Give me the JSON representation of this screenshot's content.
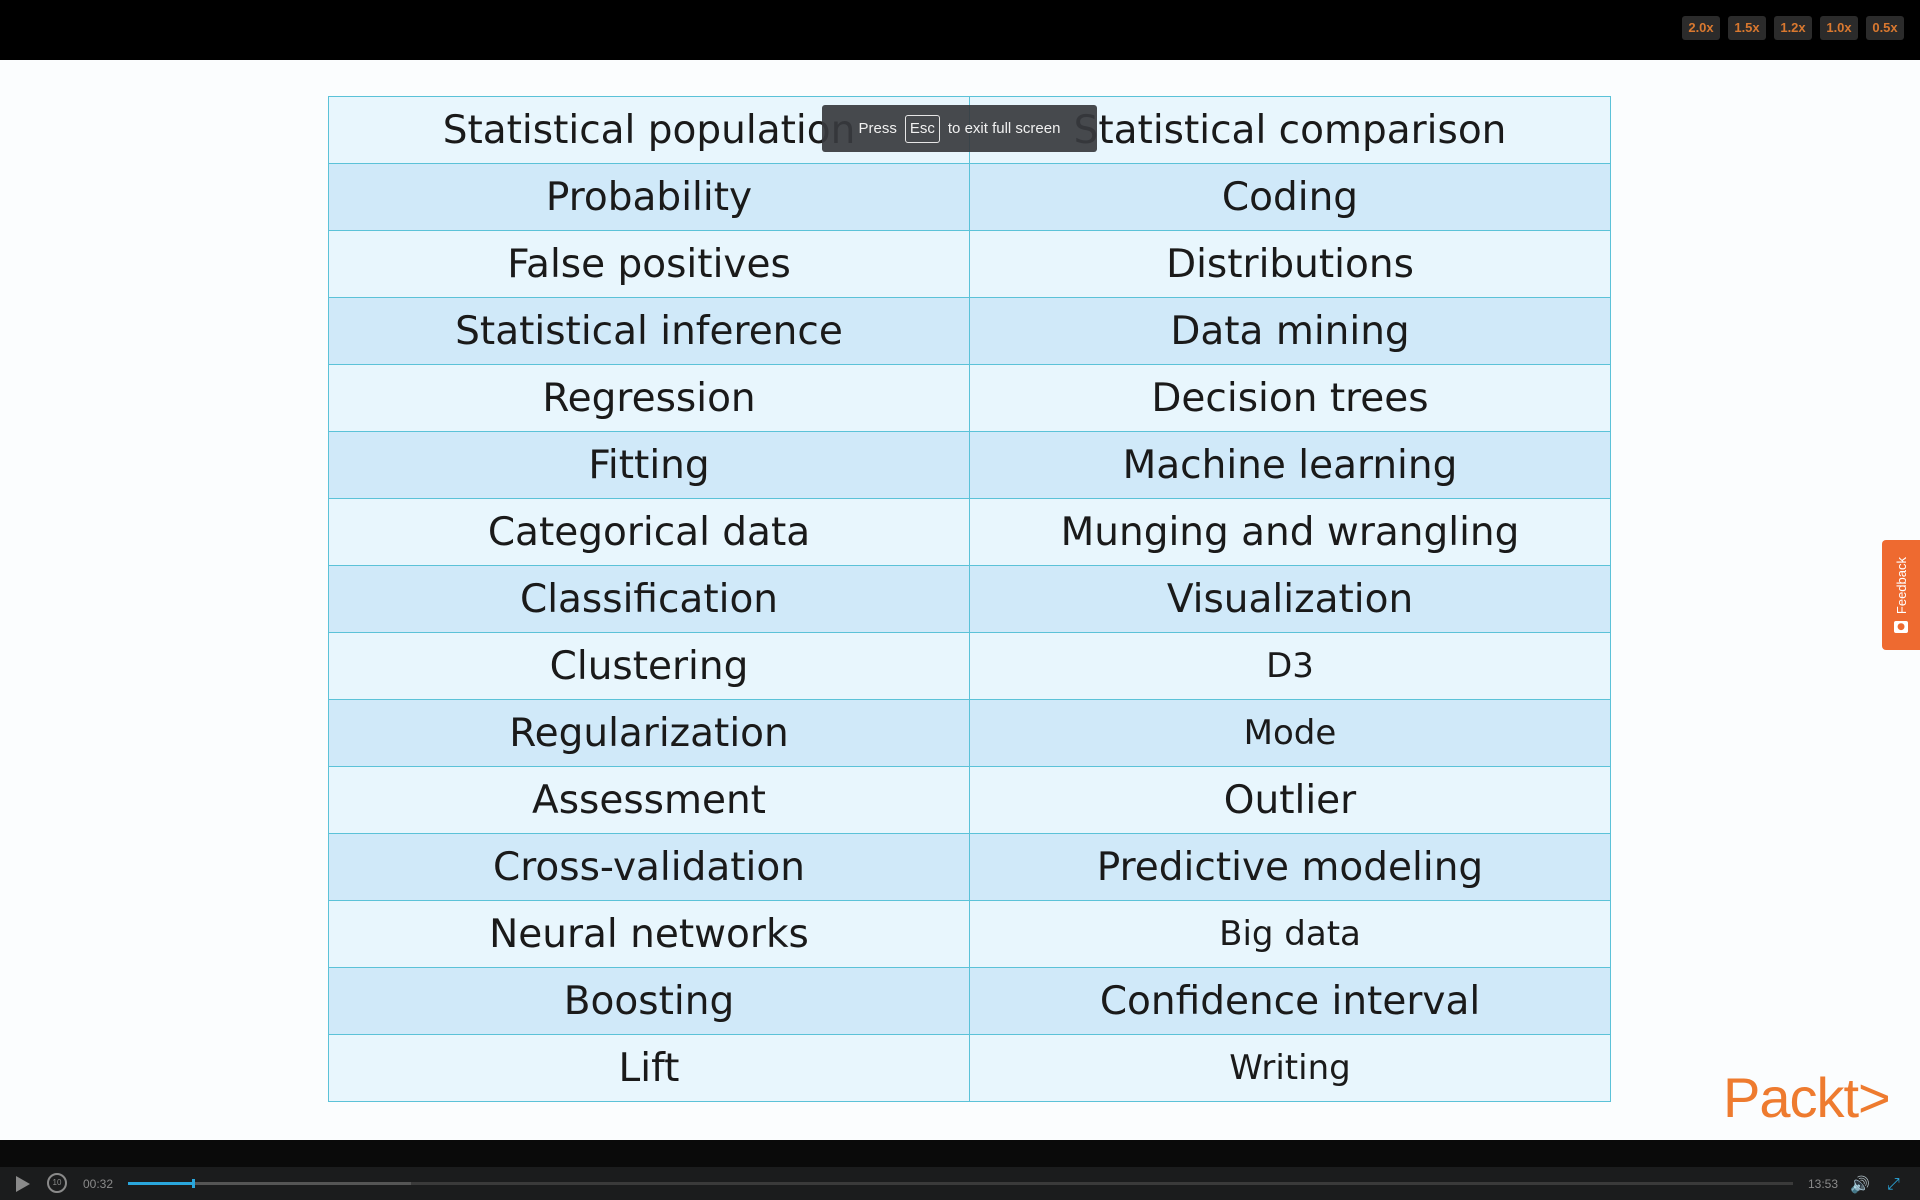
{
  "player": {
    "speed_options": [
      "2.0x",
      "1.5x",
      "1.2x",
      "1.0x",
      "0.5x"
    ],
    "fullscreen_notice": {
      "before": "Press",
      "key": "Esc",
      "after": "to exit full screen"
    },
    "time_current": "00:32",
    "time_total": "13:53",
    "progress_fraction": 0.039,
    "buffer_fraction": 0.17,
    "rewind_label": "10",
    "accent_color": "#2aa6dc"
  },
  "slide": {
    "rows": [
      [
        "Statistical population",
        "Statistical comparison"
      ],
      [
        "Probability",
        "Coding"
      ],
      [
        "False positives",
        "Distributions"
      ],
      [
        "Statistical inference",
        "Data mining"
      ],
      [
        "Regression",
        "Decision trees"
      ],
      [
        "Fitting",
        "Machine learning"
      ],
      [
        "Categorical data",
        "Munging and wrangling"
      ],
      [
        "Classification",
        "Visualization"
      ],
      [
        "Clustering",
        "D3"
      ],
      [
        "Regularization",
        "Mode"
      ],
      [
        "Assessment",
        "Outlier"
      ],
      [
        "Cross-validation",
        "Predictive modeling"
      ],
      [
        "Neural networks",
        "Big data"
      ],
      [
        "Boosting",
        "Confidence interval"
      ],
      [
        "Lift",
        "Writing"
      ]
    ],
    "logo_text": "Packt>",
    "logo_color": "#ee7b2f"
  },
  "feedback": {
    "label": "Feedback",
    "color": "#ee6a30"
  }
}
